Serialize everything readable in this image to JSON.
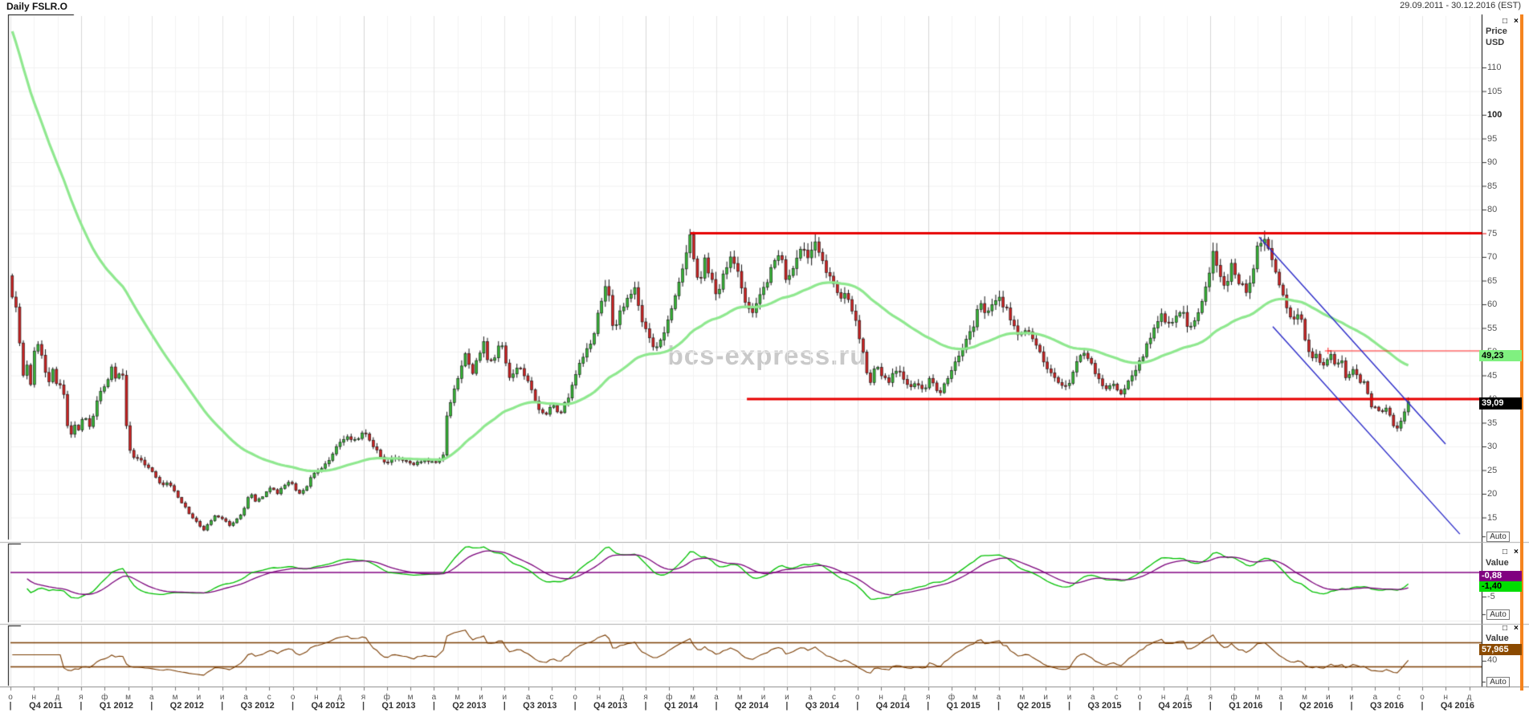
{
  "window": {
    "title": "Daily FSLR.O",
    "date_range": "29.09.2011 - 30.12.2016 (EST)",
    "maximize_icon": "□",
    "close_icon": "×"
  },
  "watermark": {
    "text": "bcs-express.ru"
  },
  "panels": {
    "price": {
      "axis_title": [
        "Price",
        "USD"
      ],
      "ticks": [
        110,
        105,
        100,
        95,
        90,
        85,
        80,
        75,
        70,
        65,
        60,
        55,
        50,
        45,
        40,
        35,
        30,
        25,
        20,
        15
      ],
      "bold_ticks": [
        100
      ],
      "ma_value_label": "49,23",
      "last_price_label": "39,09",
      "auto_label": "Auto"
    },
    "macd": {
      "axis_title": "Value",
      "ticks": [
        "-5"
      ],
      "signal_value_label": "-0,88",
      "macd_value_label": "-1,40",
      "auto_label": "Auto"
    },
    "rsi": {
      "axis_title": "Value",
      "ticks": [
        "40"
      ],
      "value_label": "57,965",
      "auto_label": "Auto"
    }
  },
  "time_axis": {
    "separator": "|",
    "month_letters": [
      "о",
      "н",
      "д",
      "я",
      "ф",
      "м",
      "а",
      "м",
      "и",
      "и",
      "а",
      "с",
      "о",
      "н",
      "д",
      "я",
      "ф",
      "м",
      "а",
      "м",
      "и",
      "и",
      "а",
      "с",
      "о",
      "н",
      "д",
      "я",
      "ф",
      "м",
      "а",
      "м",
      "и",
      "и",
      "а",
      "с",
      "о",
      "н",
      "д",
      "я",
      "ф",
      "м",
      "а",
      "м",
      "и",
      "и",
      "а",
      "с",
      "о",
      "н",
      "д",
      "я",
      "ф",
      "м",
      "а",
      "м",
      "и",
      "и",
      "а",
      "с",
      "о",
      "н",
      "д"
    ],
    "quarter_labels": [
      "Q4 2011",
      "Q1 2012",
      "Q2 2012",
      "Q3 2012",
      "Q4 2012",
      "Q1 2013",
      "Q2 2013",
      "Q3 2013",
      "Q4 2013",
      "Q1 2014",
      "Q2 2014",
      "Q3 2014",
      "Q4 2014",
      "Q1 2015",
      "Q2 2015",
      "Q3 2015",
      "Q4 2015",
      "Q1 2016",
      "Q2 2016",
      "Q3 2016",
      "Q4 2016"
    ]
  },
  "colors": {
    "up": "#35b535",
    "down": "#cc2222",
    "wick": "#141414",
    "ma": "#8fe88f",
    "level": "#e60000",
    "thin_level": "#ff2222",
    "trend": "#2929c8",
    "macd_line": "#00c000",
    "signal_line": "#7a007a",
    "zero_line": "#800080",
    "rsi_line": "#7a3c00",
    "watermark": "#c9c9c9",
    "accent_stripe": "#f5841f",
    "label_ma_bg": "#80f080",
    "label_last_bg": "#000000",
    "label_signal_bg": "#800080",
    "label_macd_bg": "#00dd00",
    "label_rsi_bg": "#8b4a00"
  },
  "chart_data": {
    "type": "candlestick",
    "symbol": "FSLR.O",
    "timeframe": "Daily",
    "range": "29.09.2011 - 30.12.2016 (EST)",
    "title": "Daily FSLR.O",
    "price_axis": {
      "min": 15,
      "max": 110,
      "tick_step": 5,
      "unit": "USD"
    },
    "last_price": 39.09,
    "months_span": 59.5,
    "price_path_anchors": [
      [
        0,
        66
      ],
      [
        0.1,
        60
      ],
      [
        0.2,
        64
      ],
      [
        0.35,
        57
      ],
      [
        0.5,
        50.5
      ],
      [
        0.65,
        44
      ],
      [
        0.8,
        47.5
      ],
      [
        0.95,
        43
      ],
      [
        1.1,
        50
      ],
      [
        1.3,
        52.5
      ],
      [
        1.5,
        47
      ],
      [
        1.7,
        43.5
      ],
      [
        1.9,
        47
      ],
      [
        2.1,
        42
      ],
      [
        2.3,
        44
      ],
      [
        2.45,
        36
      ],
      [
        2.6,
        31.5
      ],
      [
        2.8,
        34.5
      ],
      [
        3,
        33
      ],
      [
        3.2,
        37.5
      ],
      [
        3.4,
        34
      ],
      [
        3.6,
        36.5
      ],
      [
        3.8,
        40.5
      ],
      [
        4.1,
        43
      ],
      [
        4.4,
        46.5
      ],
      [
        4.6,
        44
      ],
      [
        4.8,
        47
      ],
      [
        4.95,
        41
      ],
      [
        5.05,
        30
      ],
      [
        5.3,
        28
      ],
      [
        5.6,
        27
      ],
      [
        5.9,
        25.5
      ],
      [
        6.2,
        24
      ],
      [
        6.5,
        21.5
      ],
      [
        6.8,
        22.5
      ],
      [
        7.1,
        20
      ],
      [
        7.4,
        18
      ],
      [
        7.7,
        15.5
      ],
      [
        8,
        14
      ],
      [
        8.3,
        12.3
      ],
      [
        8.5,
        13.8
      ],
      [
        8.8,
        15.5
      ],
      [
        9.1,
        14.8
      ],
      [
        9.4,
        13.2
      ],
      [
        9.7,
        14.5
      ],
      [
        10,
        16.5
      ],
      [
        10.25,
        20.5
      ],
      [
        10.5,
        18.5
      ],
      [
        10.8,
        19.5
      ],
      [
        11.1,
        21.5
      ],
      [
        11.4,
        20
      ],
      [
        11.7,
        21.8
      ],
      [
        12,
        22.5
      ],
      [
        12.3,
        19.8
      ],
      [
        12.6,
        21
      ],
      [
        12.9,
        23.8
      ],
      [
        13.3,
        25.5
      ],
      [
        13.7,
        27.5
      ],
      [
        14,
        30.8
      ],
      [
        14.4,
        31.8
      ],
      [
        14.8,
        31
      ],
      [
        15.1,
        33.2
      ],
      [
        15.4,
        31
      ],
      [
        15.8,
        28
      ],
      [
        16.1,
        26.2
      ],
      [
        16.4,
        27.8
      ],
      [
        16.8,
        27
      ],
      [
        17.2,
        26
      ],
      [
        17.6,
        27.2
      ],
      [
        18,
        26.5
      ],
      [
        18.3,
        27.2
      ],
      [
        18.5,
        28
      ],
      [
        18.65,
        37.5
      ],
      [
        18.9,
        41
      ],
      [
        19.2,
        45.5
      ],
      [
        19.45,
        49.8
      ],
      [
        19.7,
        45.5
      ],
      [
        20,
        49
      ],
      [
        20.2,
        51.8
      ],
      [
        20.45,
        47
      ],
      [
        20.7,
        49.5
      ],
      [
        20.95,
        52.2
      ],
      [
        21.3,
        44.5
      ],
      [
        21.6,
        46.8
      ],
      [
        21.9,
        45.5
      ],
      [
        22.2,
        42
      ],
      [
        22.5,
        38.5
      ],
      [
        22.8,
        36.2
      ],
      [
        23.1,
        39
      ],
      [
        23.4,
        36.5
      ],
      [
        23.7,
        39.5
      ],
      [
        24,
        43
      ],
      [
        24.3,
        48.5
      ],
      [
        24.6,
        50.5
      ],
      [
        24.9,
        54
      ],
      [
        25.2,
        61
      ],
      [
        25.45,
        65.5
      ],
      [
        25.6,
        57
      ],
      [
        25.75,
        53.5
      ],
      [
        26,
        58.5
      ],
      [
        26.3,
        61
      ],
      [
        26.6,
        63.8
      ],
      [
        26.9,
        57
      ],
      [
        27.2,
        53.5
      ],
      [
        27.5,
        50.5
      ],
      [
        27.8,
        53
      ],
      [
        28.1,
        57.5
      ],
      [
        28.4,
        62
      ],
      [
        28.7,
        69
      ],
      [
        28.95,
        74.3
      ],
      [
        29.15,
        68
      ],
      [
        29.35,
        64.5
      ],
      [
        29.6,
        69.5
      ],
      [
        29.85,
        66
      ],
      [
        30.1,
        61.5
      ],
      [
        30.4,
        66.5
      ],
      [
        30.7,
        70.8
      ],
      [
        31,
        66.5
      ],
      [
        31.3,
        60.5
      ],
      [
        31.6,
        57.8
      ],
      [
        31.9,
        61
      ],
      [
        32.2,
        64.5
      ],
      [
        32.5,
        68
      ],
      [
        32.8,
        70.5
      ],
      [
        33.1,
        64.5
      ],
      [
        33.4,
        68.5
      ],
      [
        33.7,
        72.8
      ],
      [
        34,
        70.5
      ],
      [
        34.25,
        73.8
      ],
      [
        34.5,
        70
      ],
      [
        34.75,
        67
      ],
      [
        35,
        64.8
      ],
      [
        35.3,
        61.5
      ],
      [
        35.6,
        63
      ],
      [
        35.9,
        58.5
      ],
      [
        36.15,
        53
      ],
      [
        36.4,
        48
      ],
      [
        36.6,
        42.8
      ],
      [
        36.85,
        47.8
      ],
      [
        37.1,
        45.5
      ],
      [
        37.4,
        43.8
      ],
      [
        37.7,
        46
      ],
      [
        38,
        44.8
      ],
      [
        38.3,
        41.8
      ],
      [
        38.6,
        43.5
      ],
      [
        38.9,
        42
      ],
      [
        39.2,
        44.8
      ],
      [
        39.5,
        40.8
      ],
      [
        39.8,
        43.5
      ],
      [
        40.1,
        46.5
      ],
      [
        40.4,
        48.8
      ],
      [
        40.7,
        52
      ],
      [
        41,
        55
      ],
      [
        41.3,
        60.8
      ],
      [
        41.55,
        57.5
      ],
      [
        41.8,
        59.5
      ],
      [
        42.1,
        61.5
      ],
      [
        42.4,
        59
      ],
      [
        42.7,
        55.5
      ],
      [
        43,
        52.8
      ],
      [
        43.3,
        54.8
      ],
      [
        43.6,
        52
      ],
      [
        43.9,
        49
      ],
      [
        44.2,
        46.5
      ],
      [
        44.5,
        44.5
      ],
      [
        44.8,
        42.8
      ],
      [
        45.1,
        43.8
      ],
      [
        45.4,
        47.5
      ],
      [
        45.7,
        50.2
      ],
      [
        46,
        48
      ],
      [
        46.3,
        44.5
      ],
      [
        46.6,
        41.8
      ],
      [
        46.9,
        43.8
      ],
      [
        47.2,
        40.8
      ],
      [
        47.5,
        42.5
      ],
      [
        47.8,
        45
      ],
      [
        48.1,
        48
      ],
      [
        48.4,
        51.5
      ],
      [
        48.7,
        54.8
      ],
      [
        49,
        57.8
      ],
      [
        49.3,
        55.5
      ],
      [
        49.6,
        57
      ],
      [
        49.9,
        59.8
      ],
      [
        50.15,
        53.8
      ],
      [
        50.4,
        56.5
      ],
      [
        50.7,
        60.5
      ],
      [
        51,
        66
      ],
      [
        51.25,
        71.5
      ],
      [
        51.5,
        65.5
      ],
      [
        51.75,
        62.5
      ],
      [
        52,
        68.5
      ],
      [
        52.3,
        65
      ],
      [
        52.6,
        62.8
      ],
      [
        52.9,
        66.5
      ],
      [
        53.1,
        72
      ],
      [
        53.35,
        74.4
      ],
      [
        53.6,
        70.5
      ],
      [
        53.85,
        66.5
      ],
      [
        54.1,
        63
      ],
      [
        54.35,
        59.5
      ],
      [
        54.6,
        56.5
      ],
      [
        54.85,
        58.2
      ],
      [
        55,
        55.5
      ],
      [
        55.17,
        52
      ],
      [
        55.39,
        47.8
      ],
      [
        55.56,
        49.8
      ],
      [
        55.79,
        46.8
      ],
      [
        56.01,
        48.5
      ],
      [
        56.24,
        49.6
      ],
      [
        56.46,
        46.8
      ],
      [
        56.69,
        47.8
      ],
      [
        56.86,
        43.8
      ],
      [
        57.08,
        45.5
      ],
      [
        57.25,
        46.6
      ],
      [
        57.42,
        43.6
      ],
      [
        57.59,
        44.6
      ],
      [
        57.81,
        40.2
      ],
      [
        57.98,
        37.6
      ],
      [
        58.15,
        38.6
      ],
      [
        58.38,
        37
      ],
      [
        58.6,
        38.6
      ],
      [
        58.77,
        35.6
      ],
      [
        58.94,
        33.6
      ],
      [
        59.11,
        34.6
      ],
      [
        59.28,
        36.6
      ],
      [
        59.5,
        39.1
      ]
    ],
    "levels": [
      {
        "price": 75,
        "from_month": 28.9,
        "width": 3,
        "note": "resistance"
      },
      {
        "price": 40,
        "from_month": 31.3,
        "width": 3,
        "note": "support"
      },
      {
        "price": 50.17,
        "from_month": 56.0,
        "width": 1,
        "note": "thin level"
      }
    ],
    "trendlines": [
      {
        "m1": 53.07,
        "p1": 74.2,
        "m2": 60.99,
        "p2": 30.5
      },
      {
        "m1": 53.65,
        "p1": 55.3,
        "m2": 61.6,
        "p2": 11.5
      }
    ],
    "indicators": {
      "ma": {
        "period": 48,
        "last_value": 49.23
      },
      "macd": {
        "fast": 8,
        "slow": 17,
        "signal": 9,
        "last_macd": -1.4,
        "last_signal": -0.88,
        "zero_level": 0,
        "visible_tick": -5
      },
      "rsi": {
        "period": 14,
        "last_value": 57.965,
        "bands": [
          70,
          30
        ],
        "visible_tick": 40
      }
    }
  }
}
